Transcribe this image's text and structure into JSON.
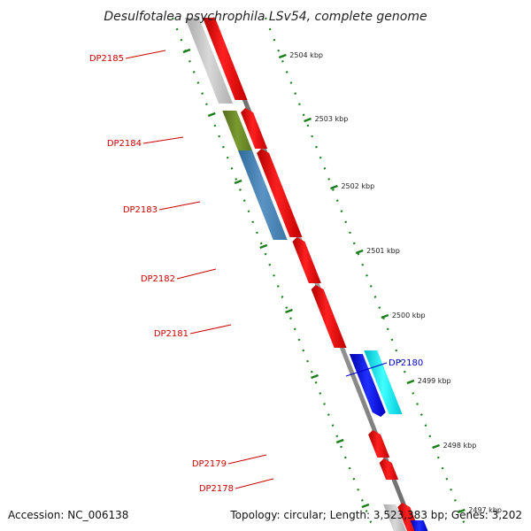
{
  "title": "Desulfotalea psychrophila LSv54, complete genome",
  "footer": {
    "accession": "Accession: NC_006138",
    "summary": "Topology: circular; Length: 3,523,383 bp; Genes: 3,202"
  },
  "colors": {
    "background": "#ffffff",
    "backbone": "#808080",
    "forward_gene": "#ff0000",
    "tick": "#1a7f1a",
    "label_default": "#cc0000",
    "label_highlight": "#0000cc",
    "gray_feature": "#c0c0c0",
    "olive_feature": "#6b8e23",
    "steelblue_feature": "#4682b4",
    "blue_feature": "#0000ff",
    "cyan_feature": "#00e5ee"
  },
  "scale_ticks": [
    {
      "label": "2504 kbp"
    },
    {
      "label": "2503 kbp"
    },
    {
      "label": "2502 kbp"
    },
    {
      "label": "2501 kbp"
    },
    {
      "label": "2500 kbp"
    },
    {
      "label": "2499 kbp"
    },
    {
      "label": "2498 kbp"
    },
    {
      "label": "2497 kbp"
    }
  ],
  "gene_labels": [
    {
      "id": "DP2185",
      "color_key": "label_default"
    },
    {
      "id": "DP2184",
      "color_key": "label_default"
    },
    {
      "id": "DP2183",
      "color_key": "label_default"
    },
    {
      "id": "DP2182",
      "color_key": "label_default"
    },
    {
      "id": "DP2181",
      "color_key": "label_default"
    },
    {
      "id": "DP2180",
      "color_key": "label_highlight"
    },
    {
      "id": "DP2179",
      "color_key": "label_default"
    },
    {
      "id": "DP2178",
      "color_key": "label_default"
    }
  ],
  "features": [
    {
      "name": "gray-feature",
      "color_key": "gray_feature"
    },
    {
      "name": "olive-feature",
      "color_key": "olive_feature"
    },
    {
      "name": "steelblue-feature",
      "color_key": "steelblue_feature"
    },
    {
      "name": "blue-feature",
      "color_key": "blue_feature"
    },
    {
      "name": "cyan-feature",
      "color_key": "cyan_feature"
    },
    {
      "name": "red-gene",
      "color_key": "forward_gene"
    }
  ]
}
